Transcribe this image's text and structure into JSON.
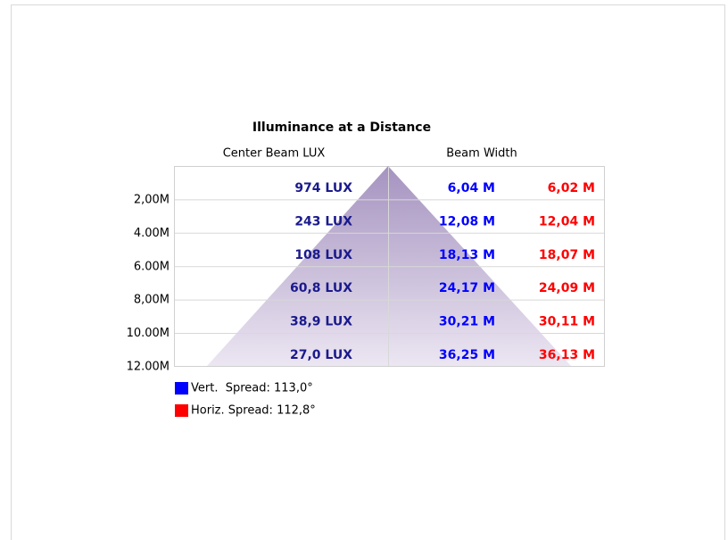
{
  "title": "Illuminance at a Distance",
  "headers": {
    "lux": "Center Beam LUX",
    "width": "Beam Width"
  },
  "rows": [
    {
      "distance": "2,00M",
      "lux": "974 LUX",
      "vert": "6,04 M",
      "horiz": "6,02 M"
    },
    {
      "distance": "4.00M",
      "lux": "243 LUX",
      "vert": "12,08 M",
      "horiz": "12,04 M"
    },
    {
      "distance": "6.00M",
      "lux": "108 LUX",
      "vert": "18,13 M",
      "horiz": "18,07 M"
    },
    {
      "distance": "8,00M",
      "lux": "60,8 LUX",
      "vert": "24,17 M",
      "horiz": "24,09 M"
    },
    {
      "distance": "10.00M",
      "lux": "38,9 LUX",
      "vert": "30,21 M",
      "horiz": "30,11 M"
    },
    {
      "distance": "12.00M",
      "lux": "27,0 LUX",
      "vert": "36,25 M",
      "horiz": "36,13 M"
    }
  ],
  "legend": [
    {
      "label": "Vert.  Spread: 113,0°",
      "color": "#0000ff"
    },
    {
      "label": "Horiz. Spread: 112,8°",
      "color": "#ff0000"
    }
  ]
}
